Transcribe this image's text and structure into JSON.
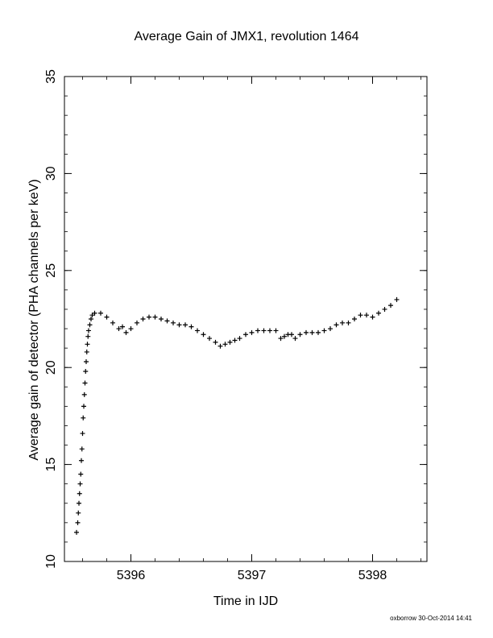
{
  "chart_data": {
    "type": "scatter",
    "marker": "plus",
    "title": "Average Gain of JMX1, revolution 1464",
    "xlabel": "Time in IJD",
    "ylabel": "Average gain of detector (PHA channels per keV)",
    "xlim": [
      5395.45,
      5398.45
    ],
    "ylim": [
      10,
      35
    ],
    "xticks": [
      5396,
      5397,
      5398
    ],
    "yticks": [
      10,
      15,
      20,
      25,
      30,
      35
    ],
    "xtick_labels": [
      "5396",
      "5397",
      "5398"
    ],
    "ytick_labels": [
      "10",
      "15",
      "20",
      "25",
      "30",
      "35"
    ],
    "grid": false,
    "footer": "oxborrow 30-Oct-2014 14:41",
    "series": [
      {
        "points": [
          [
            5395.55,
            11.5
          ],
          [
            5395.56,
            12.0
          ],
          [
            5395.565,
            12.5
          ],
          [
            5395.57,
            13.0
          ],
          [
            5395.575,
            13.5
          ],
          [
            5395.58,
            14.0
          ],
          [
            5395.585,
            14.5
          ],
          [
            5395.59,
            15.2
          ],
          [
            5395.595,
            15.8
          ],
          [
            5395.6,
            16.6
          ],
          [
            5395.605,
            17.4
          ],
          [
            5395.61,
            18.0
          ],
          [
            5395.615,
            18.6
          ],
          [
            5395.62,
            19.2
          ],
          [
            5395.625,
            19.8
          ],
          [
            5395.63,
            20.3
          ],
          [
            5395.635,
            20.8
          ],
          [
            5395.64,
            21.2
          ],
          [
            5395.645,
            21.6
          ],
          [
            5395.65,
            21.9
          ],
          [
            5395.66,
            22.2
          ],
          [
            5395.67,
            22.5
          ],
          [
            5395.68,
            22.7
          ],
          [
            5395.7,
            22.8
          ],
          [
            5395.75,
            22.8
          ],
          [
            5395.8,
            22.6
          ],
          [
            5395.85,
            22.3
          ],
          [
            5395.9,
            22.0
          ],
          [
            5395.93,
            22.1
          ],
          [
            5395.96,
            21.8
          ],
          [
            5396.0,
            22.0
          ],
          [
            5396.05,
            22.3
          ],
          [
            5396.1,
            22.5
          ],
          [
            5396.15,
            22.6
          ],
          [
            5396.2,
            22.6
          ],
          [
            5396.25,
            22.5
          ],
          [
            5396.3,
            22.4
          ],
          [
            5396.35,
            22.3
          ],
          [
            5396.4,
            22.2
          ],
          [
            5396.45,
            22.2
          ],
          [
            5396.5,
            22.1
          ],
          [
            5396.55,
            21.9
          ],
          [
            5396.6,
            21.7
          ],
          [
            5396.65,
            21.5
          ],
          [
            5396.7,
            21.3
          ],
          [
            5396.74,
            21.1
          ],
          [
            5396.78,
            21.2
          ],
          [
            5396.82,
            21.3
          ],
          [
            5396.86,
            21.4
          ],
          [
            5396.9,
            21.5
          ],
          [
            5396.95,
            21.7
          ],
          [
            5397.0,
            21.8
          ],
          [
            5397.05,
            21.9
          ],
          [
            5397.1,
            21.9
          ],
          [
            5397.15,
            21.9
          ],
          [
            5397.2,
            21.9
          ],
          [
            5397.24,
            21.5
          ],
          [
            5397.27,
            21.6
          ],
          [
            5397.3,
            21.7
          ],
          [
            5397.33,
            21.7
          ],
          [
            5397.36,
            21.5
          ],
          [
            5397.4,
            21.7
          ],
          [
            5397.45,
            21.8
          ],
          [
            5397.5,
            21.8
          ],
          [
            5397.55,
            21.8
          ],
          [
            5397.6,
            21.9
          ],
          [
            5397.65,
            22.0
          ],
          [
            5397.7,
            22.2
          ],
          [
            5397.75,
            22.3
          ],
          [
            5397.8,
            22.3
          ],
          [
            5397.85,
            22.5
          ],
          [
            5397.9,
            22.7
          ],
          [
            5397.95,
            22.7
          ],
          [
            5398.0,
            22.6
          ],
          [
            5398.05,
            22.8
          ],
          [
            5398.1,
            23.0
          ],
          [
            5398.15,
            23.2
          ],
          [
            5398.2,
            23.5
          ]
        ]
      }
    ]
  }
}
